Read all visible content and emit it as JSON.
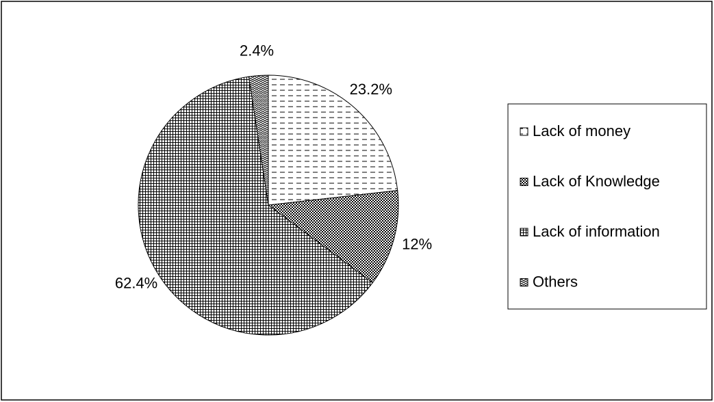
{
  "chart_data": {
    "type": "pie",
    "categories": [
      "Lack of money",
      "Lack of Knowledge",
      "Lack of information",
      "Others"
    ],
    "values": [
      23.2,
      12,
      62.4,
      2.4
    ],
    "value_labels": [
      "23.2%",
      "12%",
      "62.4%",
      "2.4%"
    ],
    "legend": "right"
  }
}
